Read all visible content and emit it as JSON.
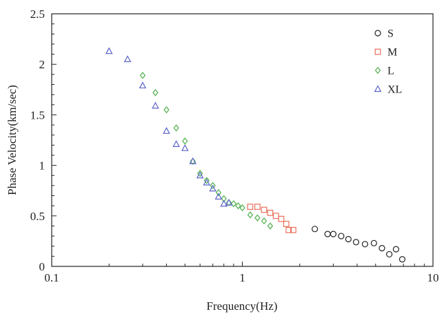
{
  "chart_data": {
    "type": "scatter",
    "xlabel": "Frequency(Hz)",
    "ylabel": "Phase Velocity(km/sec)",
    "xscale": "log",
    "xlim": [
      0.1,
      10
    ],
    "ylim": [
      0,
      2.5
    ],
    "x_ticks": [
      {
        "value": 0.1,
        "label": "0.1"
      },
      {
        "value": 1,
        "label": "1"
      },
      {
        "value": 10,
        "label": "10"
      }
    ],
    "y_ticks": [
      {
        "value": 0,
        "label": "0"
      },
      {
        "value": 0.5,
        "label": "0.5"
      },
      {
        "value": 1,
        "label": "1"
      },
      {
        "value": 1.5,
        "label": "1.5"
      },
      {
        "value": 2,
        "label": "2"
      },
      {
        "value": 2.5,
        "label": "2.5"
      }
    ],
    "grid": false,
    "legend_position": "top-right",
    "series": [
      {
        "name": "S",
        "marker": "circle",
        "color": "#222222",
        "x": [
          2.4,
          2.8,
          3.0,
          3.3,
          3.6,
          3.95,
          4.4,
          4.9,
          5.4,
          5.9,
          6.4,
          6.9
        ],
        "y": [
          0.37,
          0.32,
          0.32,
          0.3,
          0.27,
          0.24,
          0.22,
          0.23,
          0.18,
          0.12,
          0.17,
          0.07
        ]
      },
      {
        "name": "M",
        "marker": "square",
        "color": "#e8705a",
        "x": [
          1.1,
          1.2,
          1.3,
          1.4,
          1.5,
          1.6,
          1.7,
          1.75,
          1.85
        ],
        "y": [
          0.59,
          0.59,
          0.56,
          0.53,
          0.5,
          0.47,
          0.42,
          0.36,
          0.36
        ]
      },
      {
        "name": "L",
        "marker": "diamond",
        "color": "#4db04a",
        "x": [
          0.3,
          0.35,
          0.4,
          0.45,
          0.5,
          0.55,
          0.6,
          0.65,
          0.7,
          0.75,
          0.8,
          0.85,
          0.9,
          0.95,
          1.0,
          1.1,
          1.2,
          1.3,
          1.4
        ],
        "y": [
          1.89,
          1.72,
          1.55,
          1.37,
          1.24,
          1.04,
          0.92,
          0.85,
          0.8,
          0.73,
          0.67,
          0.63,
          0.62,
          0.6,
          0.58,
          0.51,
          0.48,
          0.45,
          0.4
        ]
      },
      {
        "name": "XL",
        "marker": "triangle",
        "color": "#5b63c9",
        "x": [
          0.2,
          0.25,
          0.3,
          0.35,
          0.4,
          0.45,
          0.5,
          0.55,
          0.6,
          0.65,
          0.7,
          0.75,
          0.8,
          0.85
        ],
        "y": [
          2.13,
          2.05,
          1.79,
          1.59,
          1.34,
          1.21,
          1.17,
          1.04,
          0.9,
          0.83,
          0.77,
          0.69,
          0.62,
          0.63
        ]
      }
    ]
  }
}
